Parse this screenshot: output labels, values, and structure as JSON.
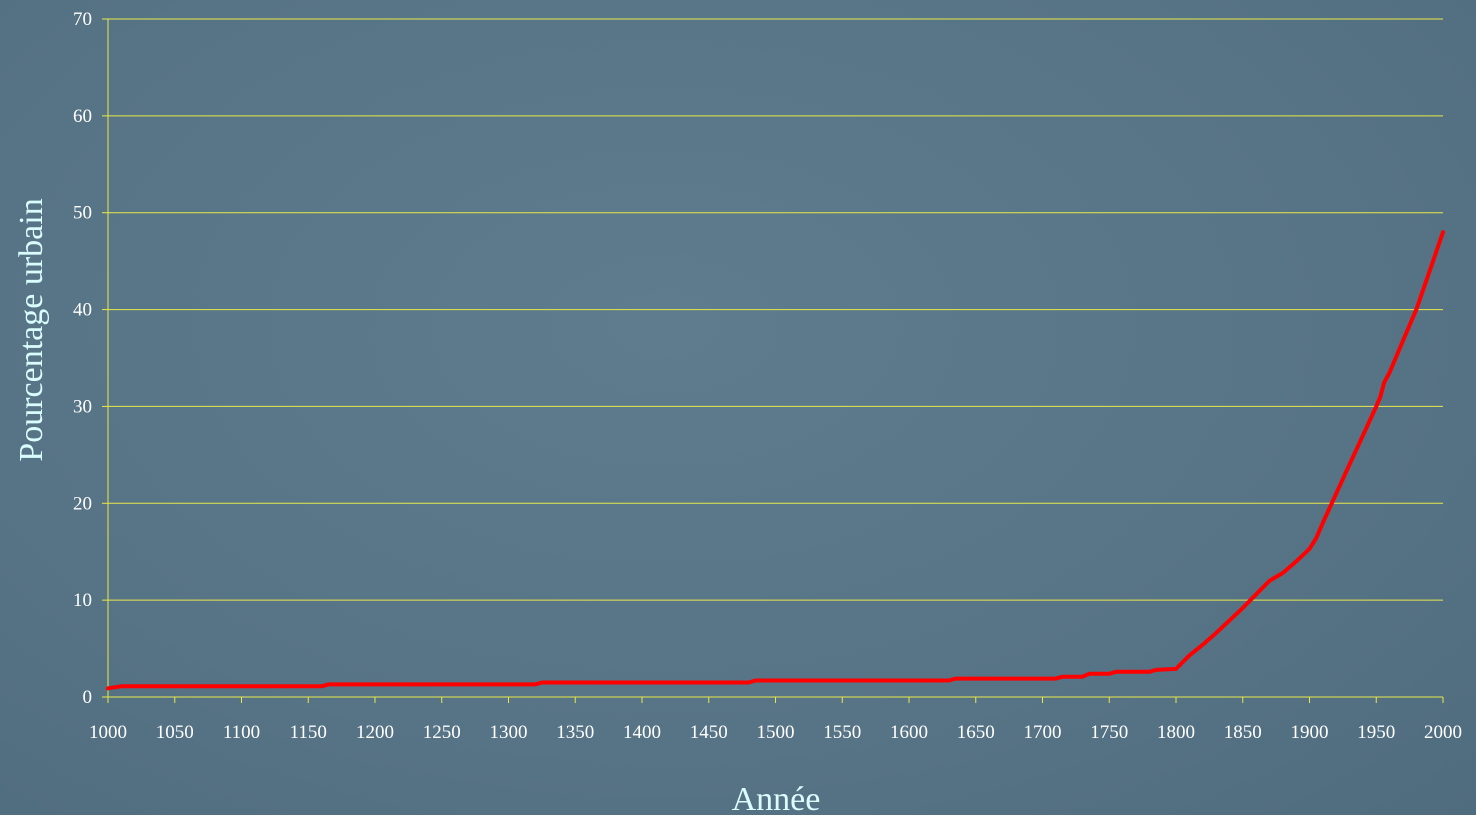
{
  "colors": {
    "background": "#587587",
    "gridline": "#e8e84a",
    "axis": "#e8e84a",
    "series": "#ff0000",
    "tick_text": "#ffffff",
    "axis_title_text": "#d9fdfd"
  },
  "chart_data": {
    "type": "line",
    "title": "",
    "xlabel": "Année",
    "ylabel": "Pourcentage urbain",
    "xlim": [
      1000,
      2000
    ],
    "ylim": [
      0,
      70
    ],
    "xticks": [
      1000,
      1050,
      1100,
      1150,
      1200,
      1250,
      1300,
      1350,
      1400,
      1450,
      1500,
      1550,
      1600,
      1650,
      1700,
      1750,
      1800,
      1850,
      1900,
      1950,
      2000
    ],
    "yticks": [
      0,
      10,
      20,
      30,
      40,
      50,
      60,
      70
    ],
    "grid": "horizontal",
    "legend": "none",
    "series": [
      {
        "x": [
          1000,
          1010,
          1020,
          1050,
          1100,
          1150,
          1160,
          1165,
          1200,
          1250,
          1300,
          1320,
          1325,
          1350,
          1400,
          1450,
          1480,
          1485,
          1500,
          1550,
          1600,
          1630,
          1635,
          1650,
          1700,
          1710,
          1715,
          1730,
          1735,
          1750,
          1755,
          1780,
          1785,
          1800,
          1805,
          1810,
          1820,
          1830,
          1840,
          1850,
          1860,
          1870,
          1875,
          1880,
          1890,
          1900,
          1905,
          1910,
          1920,
          1930,
          1940,
          1950,
          1953,
          1956,
          1960,
          1970,
          1980,
          1990,
          2000
        ],
        "values": [
          0.9,
          1.1,
          1.1,
          1.1,
          1.1,
          1.1,
          1.1,
          1.3,
          1.3,
          1.3,
          1.3,
          1.3,
          1.5,
          1.5,
          1.5,
          1.5,
          1.5,
          1.7,
          1.7,
          1.7,
          1.7,
          1.7,
          1.9,
          1.9,
          1.9,
          1.9,
          2.1,
          2.1,
          2.4,
          2.4,
          2.6,
          2.6,
          2.8,
          2.9,
          3.6,
          4.3,
          5.4,
          6.6,
          7.9,
          9.2,
          10.6,
          12.0,
          12.4,
          12.8,
          14.0,
          15.3,
          16.4,
          18.0,
          21.0,
          24.0,
          27.0,
          30.0,
          31.0,
          32.5,
          33.5,
          36.8,
          40.0,
          44.0,
          48.0
        ]
      }
    ]
  }
}
